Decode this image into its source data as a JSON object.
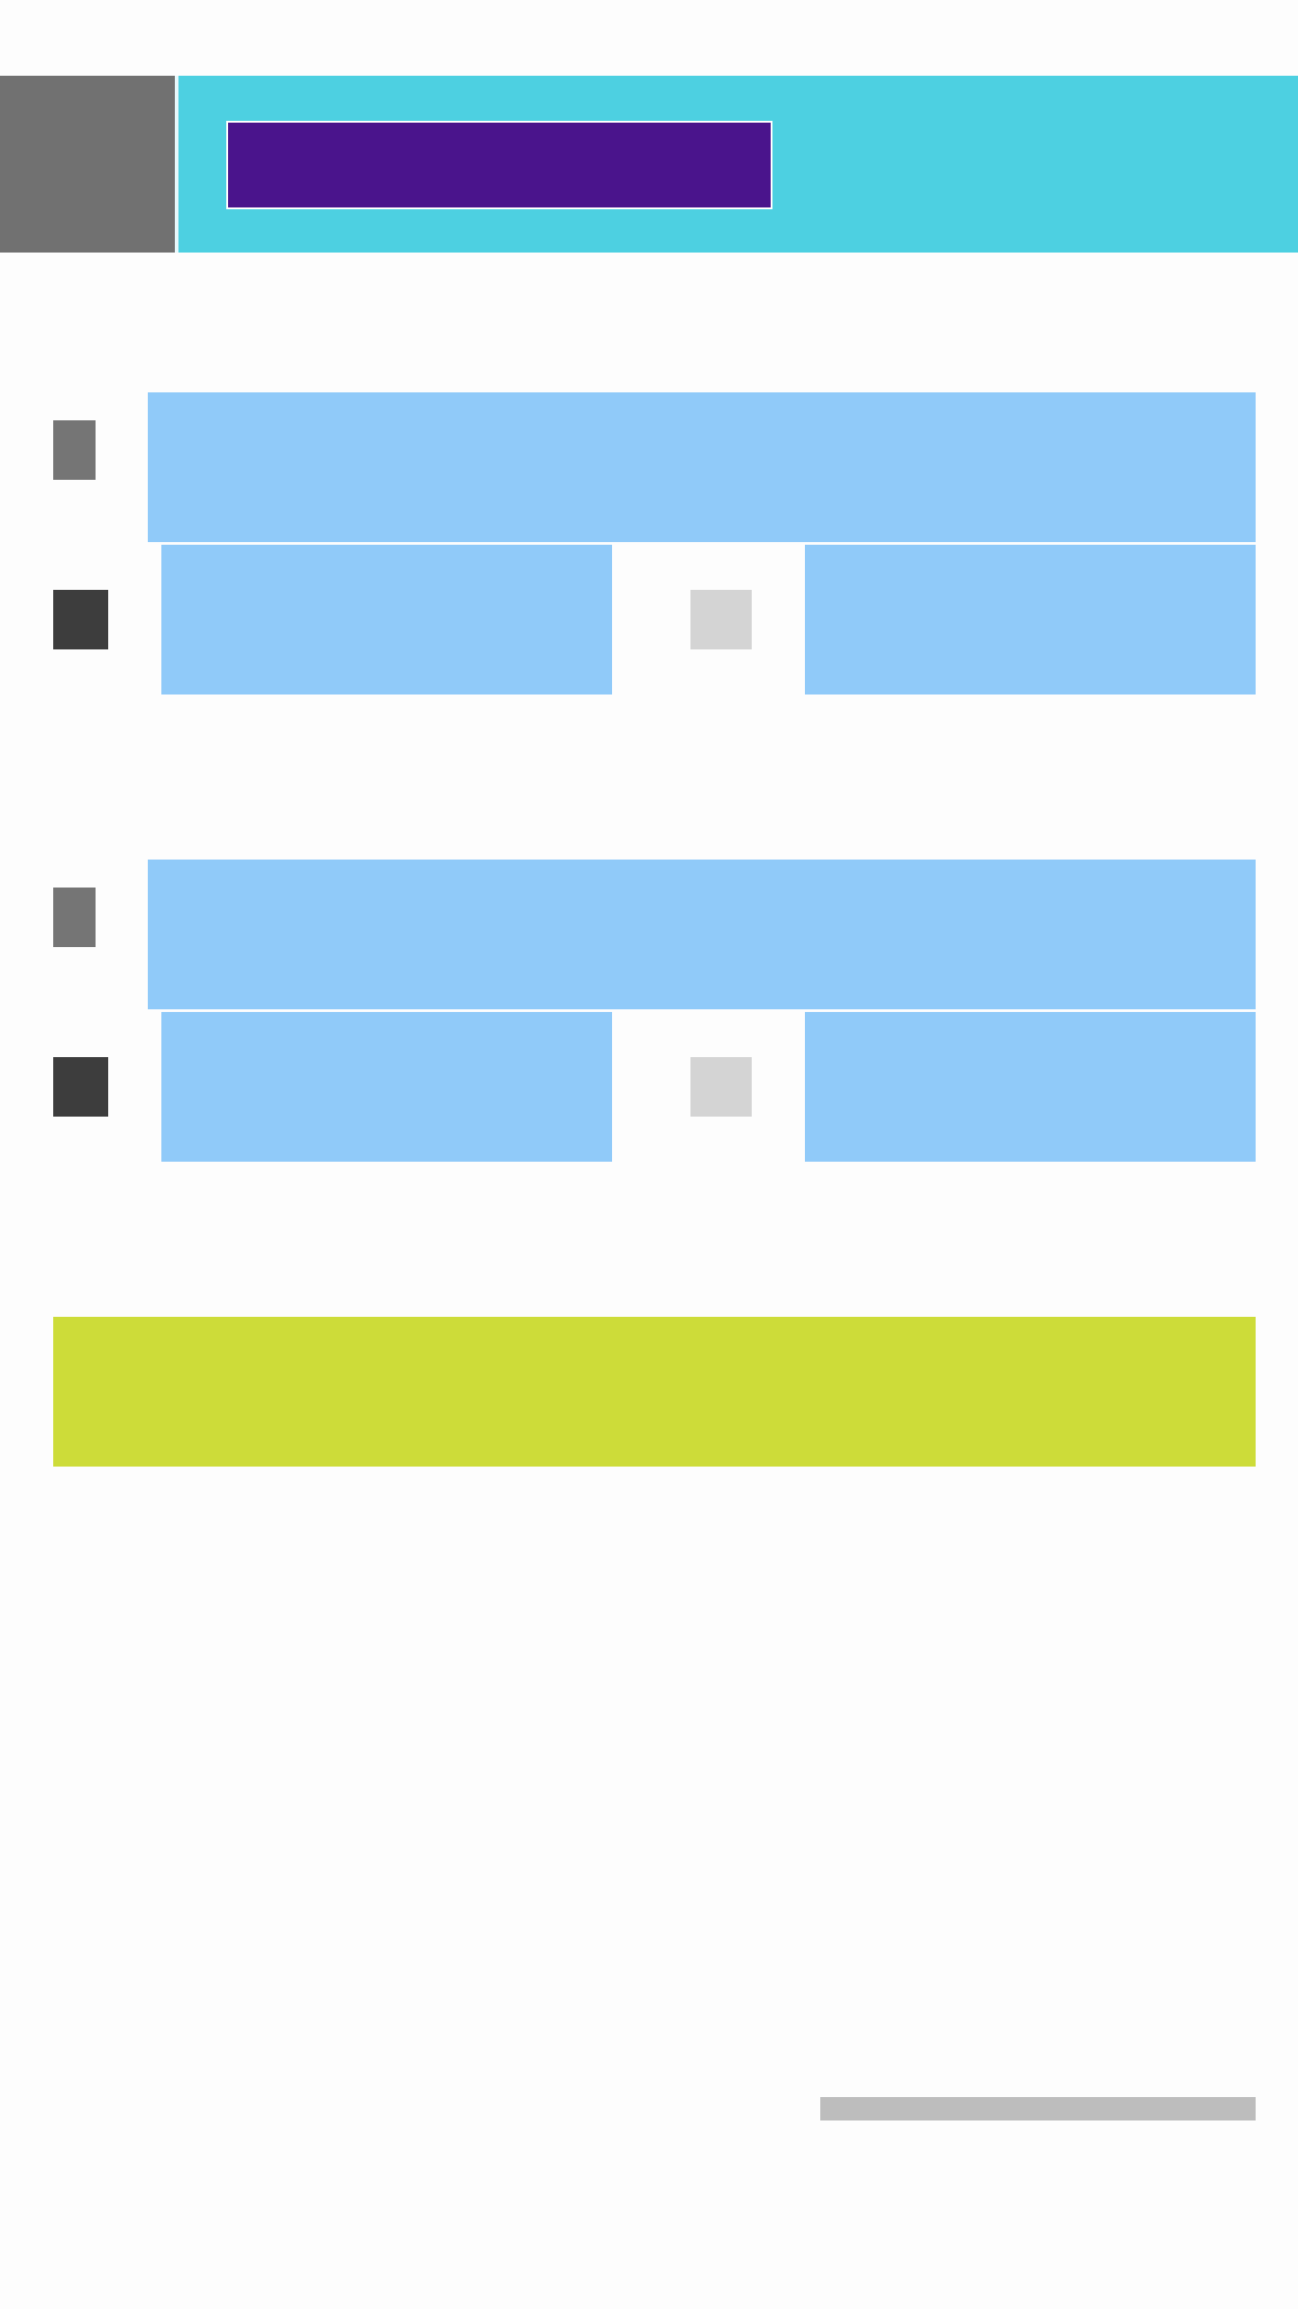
{
  "colors": {
    "header_icon": "#717171",
    "header_bar": "#4dd0e1",
    "title_box": "#4a148c",
    "panel": "#90caf9",
    "icon_medium": "#757575",
    "icon_dark": "#3d3d3d",
    "icon_light": "#d4d4d4",
    "action_bar": "#cddc39",
    "footer_strip": "#bdbdbd",
    "background": "#fdfdfd"
  },
  "header": {
    "title": ""
  },
  "groups": [
    {
      "main_panel": {
        "text": ""
      },
      "left_panel": {
        "text": ""
      },
      "right_panel": {
        "text": ""
      }
    },
    {
      "main_panel": {
        "text": ""
      },
      "left_panel": {
        "text": ""
      },
      "right_panel": {
        "text": ""
      }
    }
  ],
  "action_bar": {
    "label": ""
  },
  "footer": {
    "text": ""
  }
}
